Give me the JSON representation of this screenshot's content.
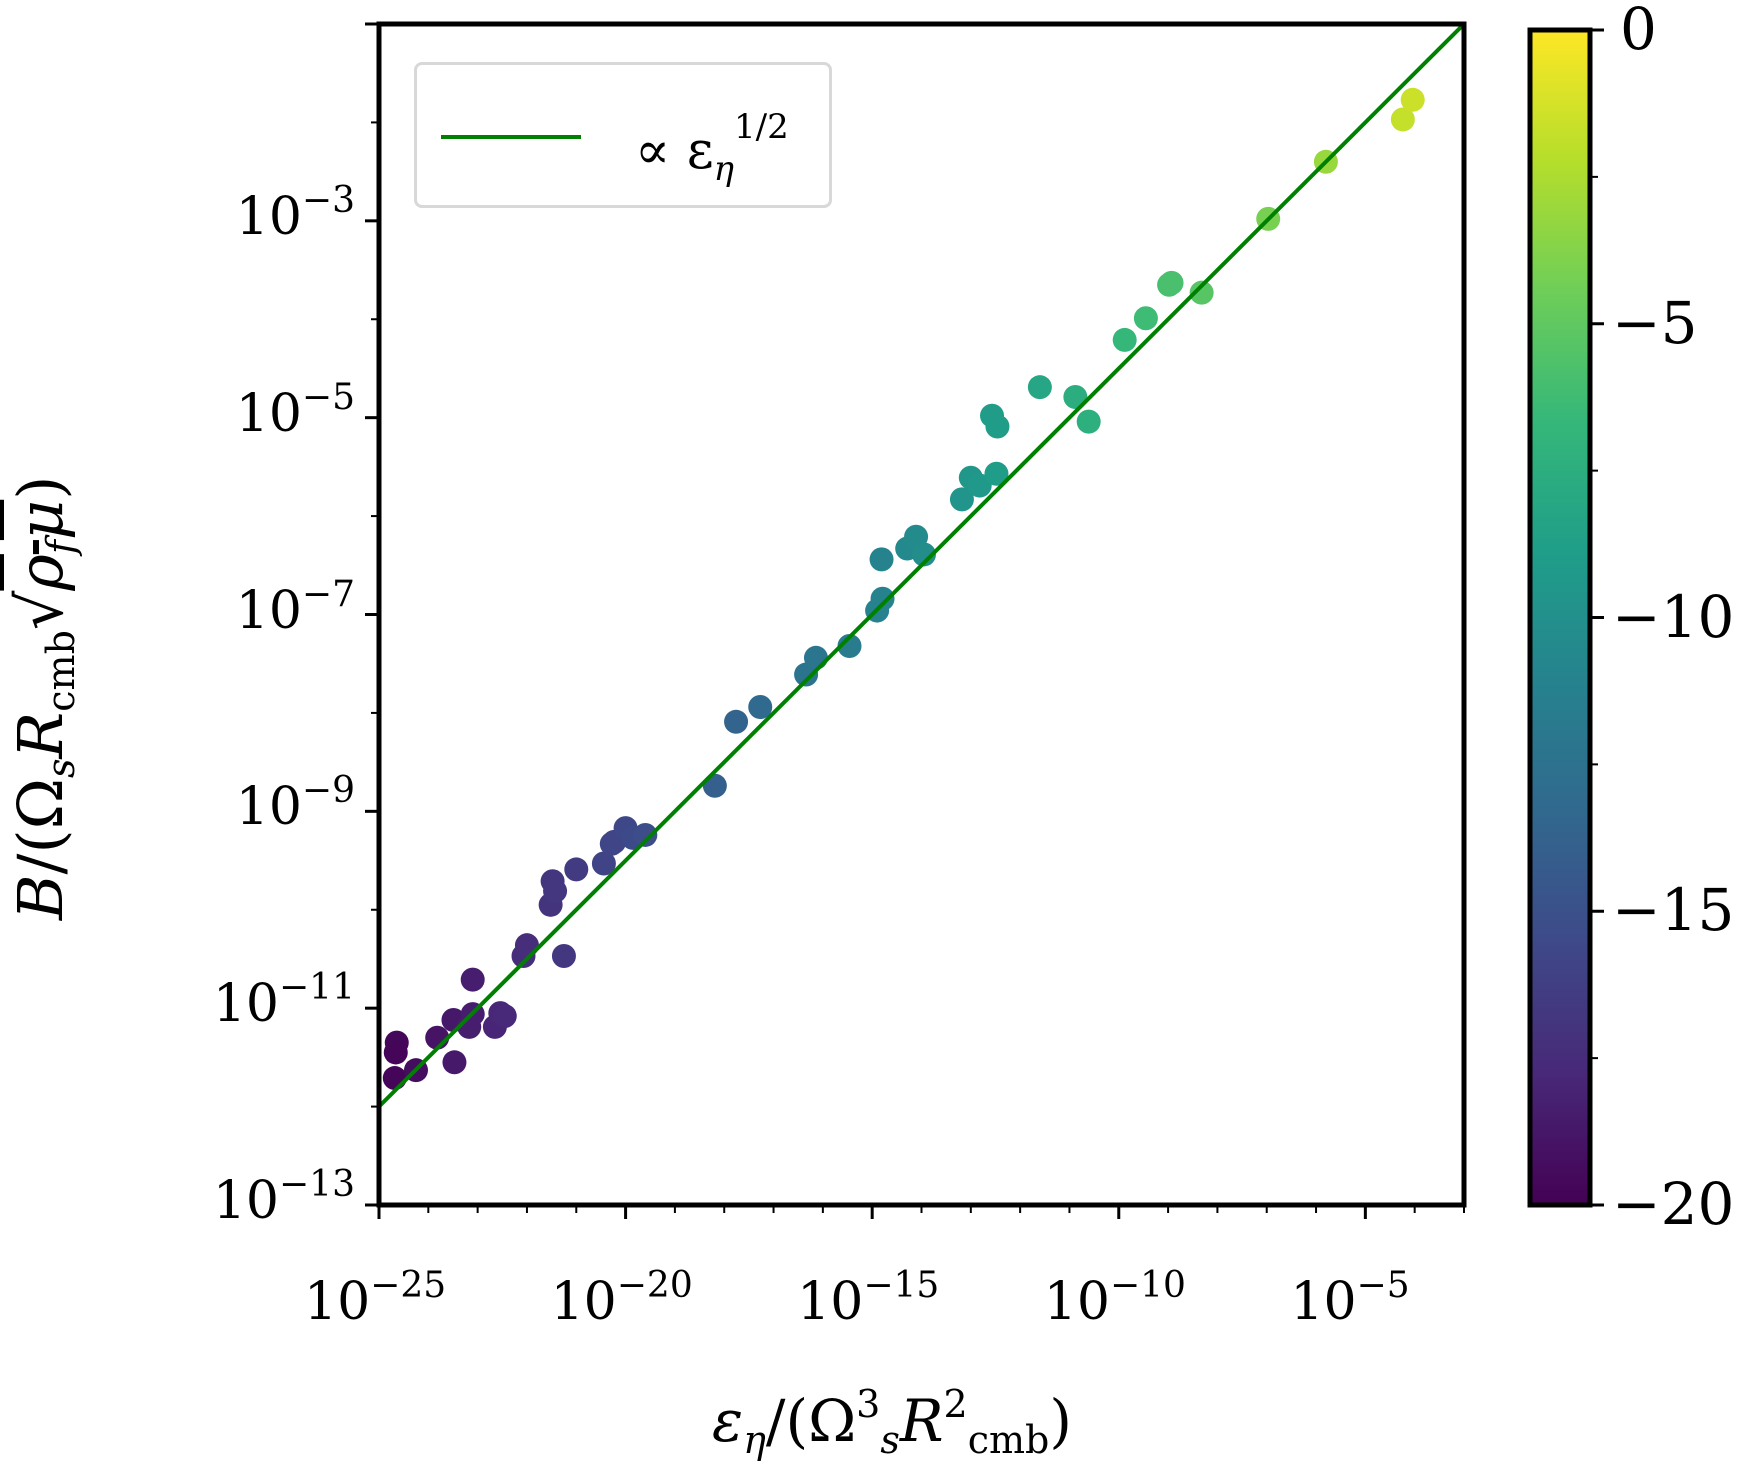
{
  "chart_data": {
    "type": "scatter",
    "xscale": "log",
    "yscale": "log",
    "xlim_exp": [
      -25,
      -3
    ],
    "ylim_exp": [
      -13,
      -1
    ],
    "xlabel": {
      "num": "ε",
      "num_sub": "η",
      "den_open": "/(Ω",
      "den_sup": "3",
      "den_sub": "s",
      "R": "R",
      "R_sup": "2",
      "R_sub": "cmb",
      "close": ")"
    },
    "ylabel": {
      "B": "B",
      "slash": "/(Ω",
      "s": "s",
      "R": "R",
      "cmb": "cmb",
      "sqrt": "√",
      "rho": "ρ",
      "f": "f",
      "mu": "μ",
      "close": ")"
    },
    "x_ticks": [
      {
        "base": "10",
        "exp": "−25",
        "value_exp": -25
      },
      {
        "base": "10",
        "exp": "−20",
        "value_exp": -20
      },
      {
        "base": "10",
        "exp": "−15",
        "value_exp": -15
      },
      {
        "base": "10",
        "exp": "−10",
        "value_exp": -10
      },
      {
        "base": "10",
        "exp": "−5",
        "value_exp": -5
      }
    ],
    "y_ticks": [
      {
        "base": "10",
        "exp": "−13",
        "value_exp": -13
      },
      {
        "base": "10",
        "exp": "−11",
        "value_exp": -11
      },
      {
        "base": "10",
        "exp": "−9",
        "value_exp": -9
      },
      {
        "base": "10",
        "exp": "−7",
        "value_exp": -7
      },
      {
        "base": "10",
        "exp": "−5",
        "value_exp": -5
      },
      {
        "base": "10",
        "exp": "−3",
        "value_exp": -3
      }
    ],
    "fit_line": {
      "label_prefix": "∝ ε",
      "label_sub": "η",
      "label_sup": "1/2",
      "slope": 0.5,
      "intercept_log10": 0.5,
      "color": "#008000"
    },
    "colorbar": {
      "range": [
        -20,
        0
      ],
      "ticks": [
        {
          "label": "0",
          "value": 0
        },
        {
          "label": "−5",
          "value": -5
        },
        {
          "label": "−10",
          "value": -10
        },
        {
          "label": "−15",
          "value": -15
        },
        {
          "label": "−20",
          "value": -20
        }
      ],
      "colormap": [
        "#440154",
        "#482878",
        "#3e4989",
        "#31688e",
        "#26828e",
        "#1f9e89",
        "#35b779",
        "#6ece58",
        "#b5de2b",
        "#fde725"
      ]
    },
    "points_log10": [
      [
        -24.64,
        -11.35
      ],
      [
        -24.66,
        -11.45
      ],
      [
        -24.68,
        -11.71
      ],
      [
        -24.25,
        -11.63
      ],
      [
        -23.82,
        -11.3
      ],
      [
        -23.49,
        -11.12
      ],
      [
        -23.47,
        -11.55
      ],
      [
        -23.17,
        -11.19
      ],
      [
        -23.1,
        -10.71
      ],
      [
        -23.1,
        -11.06
      ],
      [
        -22.65,
        -11.19
      ],
      [
        -22.54,
        -11.05
      ],
      [
        -22.45,
        -11.08
      ],
      [
        -22.07,
        -10.47
      ],
      [
        -22.0,
        -10.36
      ],
      [
        -21.52,
        -9.95
      ],
      [
        -21.48,
        -9.71
      ],
      [
        -21.43,
        -9.81
      ],
      [
        -21.25,
        -10.47
      ],
      [
        -21.0,
        -9.59
      ],
      [
        -20.44,
        -9.53
      ],
      [
        -20.28,
        -9.33
      ],
      [
        -20.23,
        -9.31
      ],
      [
        -20.0,
        -9.17
      ],
      [
        -19.85,
        -9.27
      ],
      [
        -19.6,
        -9.24
      ],
      [
        -18.19,
        -8.74
      ],
      [
        -17.76,
        -8.09
      ],
      [
        -17.27,
        -7.94
      ],
      [
        -16.34,
        -7.61
      ],
      [
        -16.14,
        -7.44
      ],
      [
        -15.46,
        -7.32
      ],
      [
        -14.9,
        -6.96
      ],
      [
        -14.79,
        -6.84
      ],
      [
        -14.81,
        -6.44
      ],
      [
        -14.29,
        -6.33
      ],
      [
        -14.11,
        -6.21
      ],
      [
        -13.95,
        -6.39
      ],
      [
        -13.18,
        -5.83
      ],
      [
        -13.0,
        -5.61
      ],
      [
        -12.82,
        -5.69
      ],
      [
        -12.48,
        -5.57
      ],
      [
        -12.57,
        -4.98
      ],
      [
        -12.46,
        -5.09
      ],
      [
        -11.6,
        -4.69
      ],
      [
        -10.88,
        -4.79
      ],
      [
        -10.61,
        -5.04
      ],
      [
        -9.88,
        -4.21
      ],
      [
        -9.45,
        -3.99
      ],
      [
        -8.98,
        -3.65
      ],
      [
        -8.93,
        -3.63
      ],
      [
        -8.32,
        -3.73
      ],
      [
        -6.97,
        -2.98
      ],
      [
        -5.8,
        -2.4
      ],
      [
        -4.24,
        -1.97
      ],
      [
        -4.04,
        -1.77
      ]
    ],
    "point_colors": []
  }
}
